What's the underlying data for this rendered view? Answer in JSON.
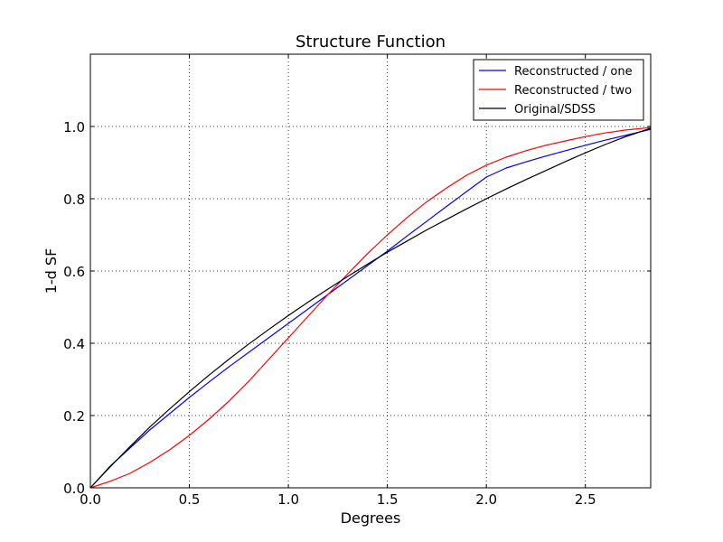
{
  "chart_data": {
    "type": "line",
    "title": "Structure Function",
    "xlabel": "Degrees",
    "ylabel": "1-d SF",
    "xlim": [
      0,
      2.83
    ],
    "ylim": [
      0,
      1.2
    ],
    "grid": true,
    "legend_position": "top-right",
    "x_ticks": [
      0.0,
      0.5,
      1.0,
      1.5,
      2.0,
      2.5
    ],
    "x_tick_labels": [
      "0.0",
      "0.5",
      "1.0",
      "1.5",
      "2.0",
      "2.5"
    ],
    "y_ticks": [
      0.0,
      0.2,
      0.4,
      0.6,
      0.8,
      1.0
    ],
    "y_tick_labels": [
      "0.0",
      "0.2",
      "0.4",
      "0.6",
      "0.8",
      "1.0"
    ],
    "series": [
      {
        "name": "Reconstructed / one",
        "color": "#0000ff",
        "x": [
          0.0,
          0.1,
          0.2,
          0.3,
          0.4,
          0.5,
          0.6,
          0.7,
          0.8,
          0.9,
          1.0,
          1.1,
          1.2,
          1.3,
          1.4,
          1.5,
          1.6,
          1.7,
          1.8,
          1.9,
          2.0,
          2.1,
          2.2,
          2.3,
          2.4,
          2.5,
          2.6,
          2.7,
          2.83
        ],
        "y": [
          0.0,
          0.06,
          0.11,
          0.16,
          0.205,
          0.25,
          0.293,
          0.335,
          0.375,
          0.415,
          0.455,
          0.495,
          0.535,
          0.575,
          0.615,
          0.655,
          0.697,
          0.738,
          0.779,
          0.82,
          0.86,
          0.885,
          0.902,
          0.918,
          0.933,
          0.948,
          0.962,
          0.975,
          0.992
        ]
      },
      {
        "name": "Reconstructed / two",
        "color": "#ff0000",
        "x": [
          0.0,
          0.1,
          0.2,
          0.3,
          0.4,
          0.5,
          0.6,
          0.7,
          0.8,
          0.9,
          1.0,
          1.1,
          1.2,
          1.3,
          1.4,
          1.5,
          1.6,
          1.7,
          1.8,
          1.9,
          2.0,
          2.1,
          2.2,
          2.3,
          2.4,
          2.5,
          2.6,
          2.7,
          2.83
        ],
        "y": [
          0.0,
          0.018,
          0.04,
          0.07,
          0.105,
          0.145,
          0.19,
          0.24,
          0.295,
          0.355,
          0.415,
          0.475,
          0.535,
          0.592,
          0.648,
          0.7,
          0.748,
          0.792,
          0.83,
          0.865,
          0.893,
          0.915,
          0.933,
          0.948,
          0.96,
          0.972,
          0.982,
          0.99,
          0.997
        ]
      },
      {
        "name": "Original/SDSS",
        "color": "#000000",
        "x": [
          0.0,
          0.1,
          0.2,
          0.3,
          0.4,
          0.5,
          0.6,
          0.7,
          0.8,
          0.9,
          1.0,
          1.1,
          1.2,
          1.3,
          1.4,
          1.5,
          1.6,
          1.7,
          1.8,
          1.9,
          2.0,
          2.1,
          2.2,
          2.3,
          2.4,
          2.5,
          2.6,
          2.7,
          2.83
        ],
        "y": [
          0.0,
          0.058,
          0.114,
          0.168,
          0.218,
          0.266,
          0.312,
          0.356,
          0.398,
          0.438,
          0.477,
          0.514,
          0.55,
          0.585,
          0.619,
          0.652,
          0.683,
          0.714,
          0.743,
          0.772,
          0.8,
          0.827,
          0.853,
          0.878,
          0.903,
          0.927,
          0.95,
          0.971,
          0.995
        ]
      }
    ]
  }
}
